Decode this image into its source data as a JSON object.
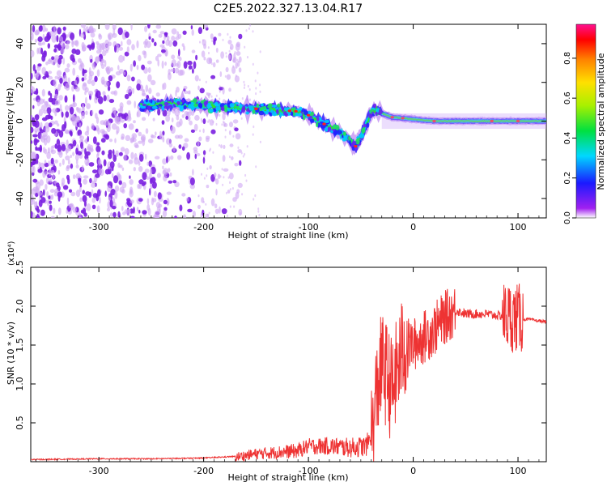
{
  "title": "C2E5.2022.327.13.04.R17",
  "colors": {
    "snr_line": "#ee3333",
    "spec_dense": "#7a1fe0",
    "spec_light": "#cfa6f4",
    "axis": "#000000"
  },
  "colorbar": {
    "label": "Normalized spectral amplitude",
    "ticks": [
      "0.0",
      "0.2",
      "0.4",
      "0.6",
      "0.8"
    ],
    "tick_values": [
      0.0,
      0.2,
      0.4,
      0.6,
      0.8
    ],
    "range": [
      0,
      0.97
    ]
  },
  "chart_data": [
    {
      "type": "heatmap",
      "title": "",
      "xlabel": "Height of straight line (km)",
      "ylabel": "Frequency (Hz)",
      "xlim": [
        -365,
        127
      ],
      "ylim": [
        -50,
        50
      ],
      "xticks": [
        -300,
        -200,
        -100,
        0,
        100
      ],
      "xtick_labels": [
        "-300",
        "-200",
        "-100",
        "0",
        "100"
      ],
      "yticks": [
        -40,
        -20,
        0,
        20,
        40
      ],
      "ytick_labels": [
        "-40",
        "-20",
        "0",
        "20",
        "40"
      ],
      "ridge_track": {
        "x": [
          -260,
          -230,
          -200,
          -170,
          -140,
          -110,
          -100,
          -90,
          -80,
          -70,
          -60,
          -55,
          -50,
          -45,
          -40,
          -35,
          -30,
          -20,
          0,
          20,
          50,
          80,
          100,
          127
        ],
        "y": [
          8,
          9,
          8,
          7,
          6,
          5,
          3,
          0,
          -3,
          -6,
          -10,
          -13,
          -8,
          -2,
          5,
          6,
          4,
          2,
          1,
          0,
          0,
          0,
          0,
          0
        ]
      },
      "noise_region": {
        "x_range": [
          -365,
          -185
        ],
        "y_range": [
          -50,
          50
        ]
      }
    },
    {
      "type": "line",
      "title": "",
      "xlabel": "Height of straight line (km)",
      "ylabel": "SNR (10 * v/v)",
      "yscale_label": "(x10⁴)",
      "xlim": [
        -365,
        127
      ],
      "ylim": [
        0,
        2.5
      ],
      "xticks": [
        -300,
        -200,
        -100,
        0,
        100
      ],
      "xtick_labels": [
        "-300",
        "-200",
        "-100",
        "0",
        "100"
      ],
      "yticks": [
        0.5,
        1.0,
        1.5,
        2.0,
        2.5
      ],
      "ytick_labels": [
        "0.5",
        "1.0",
        "1.5",
        "2.0",
        "2.5"
      ],
      "series": [
        {
          "x": [
            -365,
            -300,
            -250,
            -200,
            -170,
            -150,
            -130,
            -110,
            -100,
            -80,
            -60,
            -45,
            -38,
            -35,
            -30,
            -25,
            -20,
            -15,
            -10,
            -5,
            0,
            5,
            10,
            20,
            30,
            40,
            50,
            60,
            70,
            80,
            90,
            95,
            100,
            105,
            110,
            120,
            127
          ],
          "y": [
            0.02,
            0.03,
            0.03,
            0.04,
            0.06,
            0.1,
            0.12,
            0.14,
            0.2,
            0.2,
            0.18,
            0.2,
            0.4,
            0.9,
            1.25,
            1.1,
            0.9,
            1.2,
            1.45,
            1.5,
            1.5,
            1.55,
            1.6,
            1.7,
            1.85,
            1.95,
            1.9,
            1.9,
            1.9,
            1.88,
            1.87,
            1.85,
            1.85,
            1.83,
            1.83,
            1.81,
            1.8
          ]
        }
      ]
    }
  ]
}
